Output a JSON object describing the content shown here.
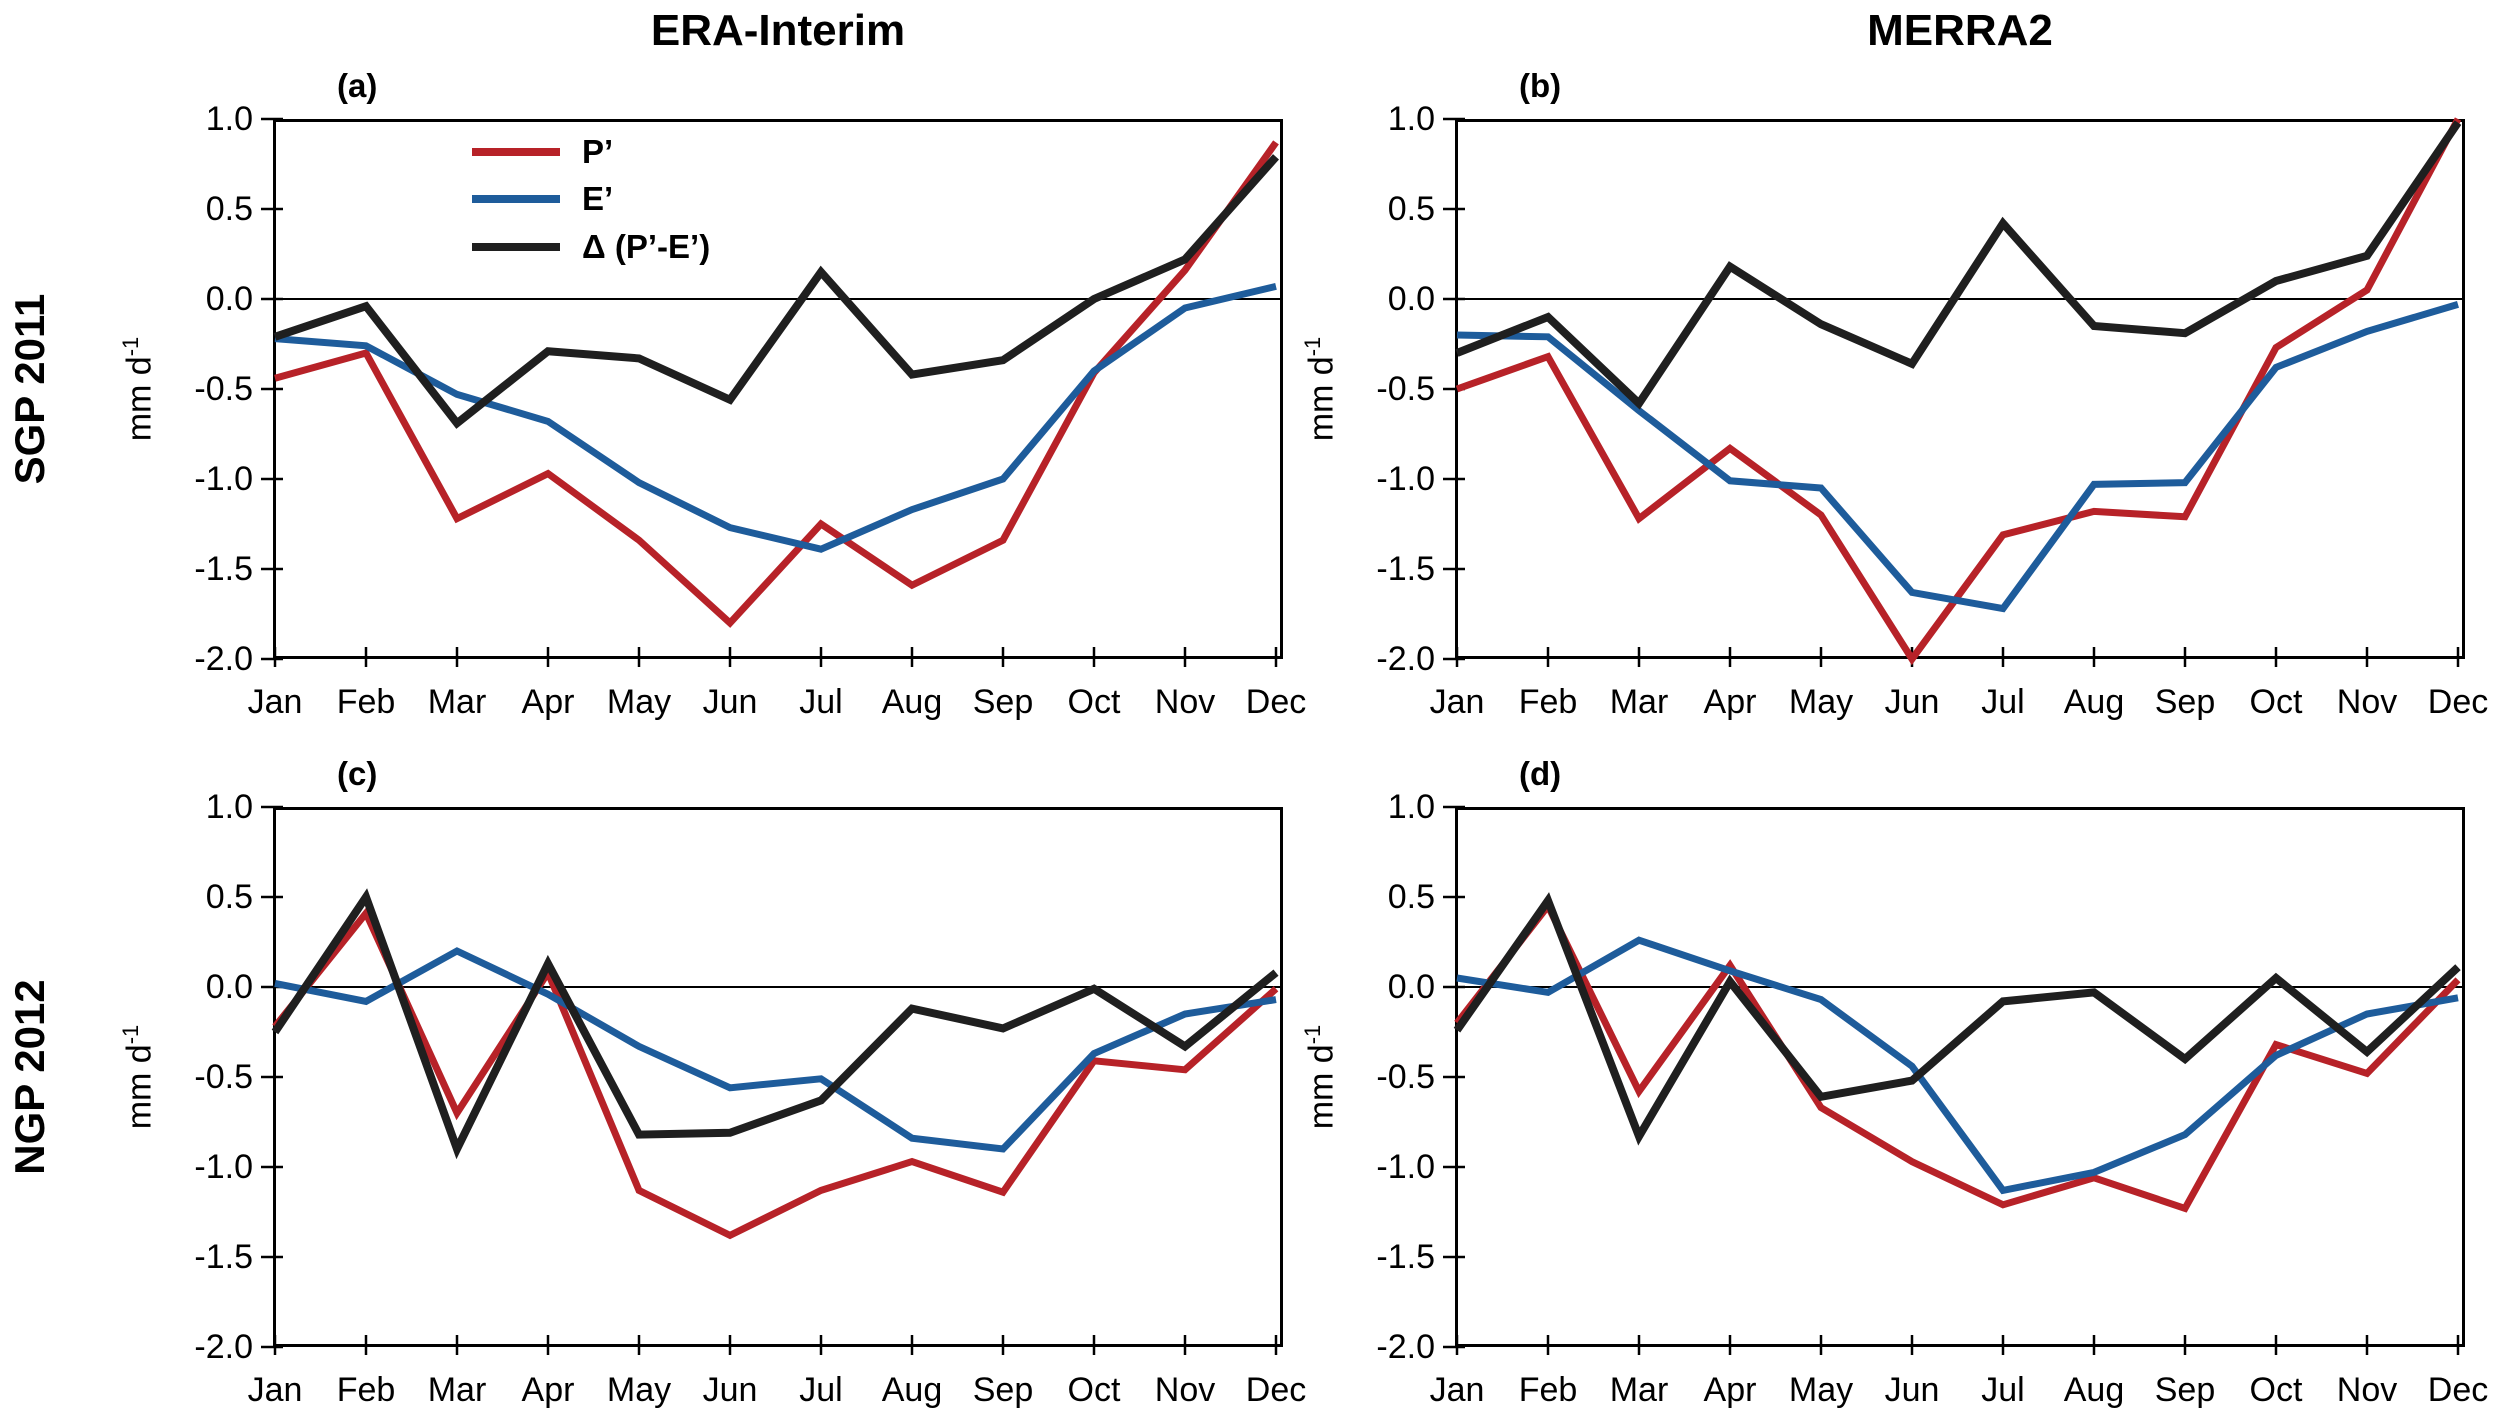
{
  "titles": {
    "col1": "ERA-Interim",
    "col2": "MERRA2"
  },
  "rows": [
    {
      "label": "SGP 2011"
    },
    {
      "label": "NGP 2012"
    }
  ],
  "axes": {
    "y_label_base": "mm d",
    "y_label_exp": "-1",
    "ylim": [
      -2.0,
      1.0
    ],
    "ytick_values": [
      1.0,
      0.5,
      0.0,
      -0.5,
      -1.0,
      -1.5,
      -2.0
    ],
    "ytick_labels": [
      "1.0",
      "0.5",
      "0.0",
      "-0.5",
      "-1.0",
      "-1.5",
      "-2.0"
    ],
    "months": [
      "Jan",
      "Feb",
      "Mar",
      "Apr",
      "May",
      "Jun",
      "Jul",
      "Aug",
      "Sep",
      "Oct",
      "Nov",
      "Dec"
    ]
  },
  "legend": [
    {
      "label": "P’",
      "color": "#b72228"
    },
    {
      "label": "E’",
      "color": "#1e5c9b"
    },
    {
      "label": "Δ (P’-E’)",
      "color": "#1f1f1f"
    }
  ],
  "chart_data": [
    {
      "type": "line",
      "panel_label": "(a)",
      "row": "SGP 2011",
      "column": "ERA-Interim",
      "categories": [
        "Jan",
        "Feb",
        "Mar",
        "Apr",
        "May",
        "Jun",
        "Jul",
        "Aug",
        "Sep",
        "Oct",
        "Nov",
        "Dec"
      ],
      "ylim": [
        -2.0,
        1.0
      ],
      "series": [
        {
          "name": "P’",
          "values": [
            -0.44,
            -0.3,
            -1.22,
            -0.97,
            -1.34,
            -1.8,
            -1.25,
            -1.59,
            -1.34,
            -0.41,
            0.16,
            0.87
          ]
        },
        {
          "name": "E’",
          "values": [
            -0.22,
            -0.26,
            -0.53,
            -0.68,
            -1.02,
            -1.27,
            -1.39,
            -1.17,
            -1.0,
            -0.4,
            -0.05,
            0.07
          ]
        },
        {
          "name": "Δ (P’-E’)",
          "values": [
            -0.21,
            -0.04,
            -0.69,
            -0.29,
            -0.33,
            -0.56,
            0.15,
            -0.42,
            -0.34,
            0.0,
            0.22,
            0.79
          ]
        }
      ]
    },
    {
      "type": "line",
      "panel_label": "(b)",
      "row": "SGP 2011",
      "column": "MERRA2",
      "categories": [
        "Jan",
        "Feb",
        "Mar",
        "Apr",
        "May",
        "Jun",
        "Jul",
        "Aug",
        "Sep",
        "Oct",
        "Nov",
        "Dec"
      ],
      "ylim": [
        -2.0,
        1.0
      ],
      "series": [
        {
          "name": "P’",
          "values": [
            -0.5,
            -0.32,
            -1.22,
            -0.83,
            -1.2,
            -2.0,
            -1.31,
            -1.18,
            -1.21,
            -0.27,
            0.05,
            1.0
          ]
        },
        {
          "name": "E’",
          "values": [
            -0.2,
            -0.21,
            -0.62,
            -1.01,
            -1.05,
            -1.63,
            -1.72,
            -1.03,
            -1.02,
            -0.38,
            -0.18,
            -0.03
          ]
        },
        {
          "name": "Δ (P’-E’)",
          "values": [
            -0.3,
            -0.1,
            -0.58,
            0.18,
            -0.14,
            -0.36,
            0.42,
            -0.15,
            -0.19,
            0.1,
            0.24,
            0.98
          ]
        }
      ]
    },
    {
      "type": "line",
      "panel_label": "(c)",
      "row": "NGP 2012",
      "column": "ERA-Interim",
      "categories": [
        "Jan",
        "Feb",
        "Mar",
        "Apr",
        "May",
        "Jun",
        "Jul",
        "Aug",
        "Sep",
        "Oct",
        "Nov",
        "Dec"
      ],
      "ylim": [
        -2.0,
        1.0
      ],
      "series": [
        {
          "name": "P’",
          "values": [
            -0.22,
            0.41,
            -0.7,
            0.08,
            -1.13,
            -1.38,
            -1.13,
            -0.97,
            -1.14,
            -0.41,
            -0.46,
            -0.01
          ]
        },
        {
          "name": "E’",
          "values": [
            0.02,
            -0.08,
            0.2,
            -0.04,
            -0.33,
            -0.56,
            -0.51,
            -0.84,
            -0.9,
            -0.37,
            -0.15,
            -0.07
          ]
        },
        {
          "name": "Δ (P’-E’)",
          "values": [
            -0.25,
            0.5,
            -0.9,
            0.13,
            -0.82,
            -0.81,
            -0.63,
            -0.12,
            -0.23,
            -0.01,
            -0.33,
            0.08
          ]
        }
      ]
    },
    {
      "type": "line",
      "panel_label": "(d)",
      "row": "NGP 2012",
      "column": "MERRA2",
      "categories": [
        "Jan",
        "Feb",
        "Mar",
        "Apr",
        "May",
        "Jun",
        "Jul",
        "Aug",
        "Sep",
        "Oct",
        "Nov",
        "Dec"
      ],
      "ylim": [
        -2.0,
        1.0
      ],
      "series": [
        {
          "name": "P’",
          "values": [
            -0.2,
            0.45,
            -0.58,
            0.12,
            -0.67,
            -0.97,
            -1.21,
            -1.06,
            -1.23,
            -0.32,
            -0.48,
            0.04
          ]
        },
        {
          "name": "E’",
          "values": [
            0.05,
            -0.03,
            0.26,
            0.09,
            -0.07,
            -0.44,
            -1.13,
            -1.03,
            -0.82,
            -0.38,
            -0.15,
            -0.06
          ]
        },
        {
          "name": "Δ (P’-E’)",
          "values": [
            -0.24,
            0.48,
            -0.83,
            0.03,
            -0.61,
            -0.52,
            -0.08,
            -0.03,
            -0.4,
            0.05,
            -0.36,
            0.11
          ]
        }
      ]
    }
  ]
}
